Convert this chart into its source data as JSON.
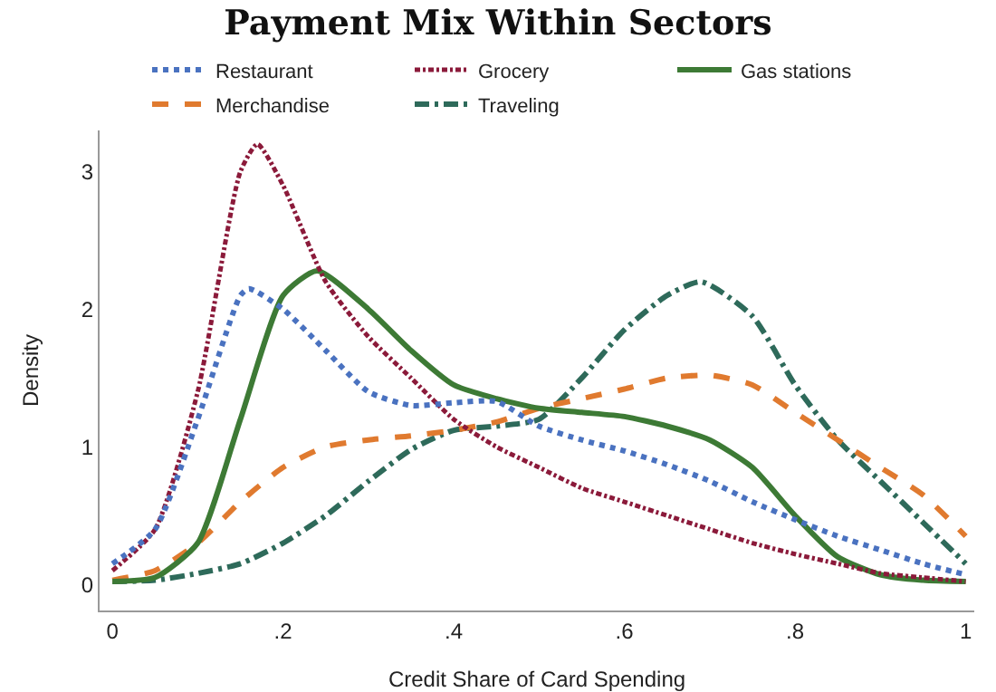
{
  "chart_data": {
    "type": "line",
    "title": "Payment Mix Within Sectors",
    "xlabel": "Credit Share of Card Spending",
    "ylabel": "Density",
    "x": [
      0,
      0.05,
      0.1,
      0.15,
      0.2,
      0.25,
      0.3,
      0.35,
      0.4,
      0.45,
      0.5,
      0.55,
      0.6,
      0.65,
      0.7,
      0.75,
      0.8,
      0.85,
      0.9,
      0.95,
      1
    ],
    "series": [
      {
        "name": "Restaurant",
        "color": "#4a72c0",
        "line_style": "dotted",
        "x": [
          0,
          0.05,
          0.1,
          0.15,
          0.16,
          0.2,
          0.25,
          0.3,
          0.35,
          0.4,
          0.45,
          0.5,
          0.55,
          0.6,
          0.65,
          0.7,
          0.75,
          0.8,
          0.85,
          0.9,
          0.95,
          1
        ],
        "values": [
          0.15,
          0.4,
          1.2,
          2.1,
          2.15,
          2.0,
          1.7,
          1.4,
          1.3,
          1.32,
          1.33,
          1.15,
          1.05,
          0.97,
          0.87,
          0.75,
          0.6,
          0.47,
          0.35,
          0.25,
          0.15,
          0.07
        ]
      },
      {
        "name": "Grocery",
        "color": "#8b1a3a",
        "line_style": "dashdot",
        "x": [
          0,
          0.05,
          0.1,
          0.15,
          0.17,
          0.2,
          0.25,
          0.3,
          0.35,
          0.4,
          0.45,
          0.5,
          0.55,
          0.6,
          0.65,
          0.7,
          0.75,
          0.8,
          0.85,
          0.9,
          0.95,
          1
        ],
        "values": [
          0.1,
          0.4,
          1.4,
          3.0,
          3.2,
          2.9,
          2.2,
          1.8,
          1.5,
          1.2,
          1.0,
          0.85,
          0.7,
          0.6,
          0.5,
          0.4,
          0.3,
          0.22,
          0.15,
          0.08,
          0.05,
          0.02
        ]
      },
      {
        "name": "Gas stations",
        "color": "#3d7a35",
        "line_style": "solid",
        "x": [
          0,
          0.05,
          0.1,
          0.15,
          0.2,
          0.24,
          0.3,
          0.35,
          0.4,
          0.45,
          0.5,
          0.55,
          0.6,
          0.65,
          0.7,
          0.75,
          0.8,
          0.85,
          0.9,
          0.95,
          1
        ],
        "values": [
          0.02,
          0.05,
          0.3,
          1.2,
          2.1,
          2.28,
          2.0,
          1.7,
          1.45,
          1.35,
          1.28,
          1.25,
          1.22,
          1.15,
          1.05,
          0.85,
          0.5,
          0.2,
          0.07,
          0.03,
          0.02
        ]
      },
      {
        "name": "Merchandise",
        "color": "#e07a2f",
        "line_style": "dashed",
        "values": [
          0.03,
          0.1,
          0.3,
          0.6,
          0.85,
          1.0,
          1.05,
          1.08,
          1.12,
          1.18,
          1.28,
          1.35,
          1.42,
          1.5,
          1.52,
          1.45,
          1.25,
          1.05,
          0.85,
          0.65,
          0.35
        ]
      },
      {
        "name": "Traveling",
        "color": "#2e6a5a",
        "line_style": "longdashdot",
        "x": [
          0,
          0.05,
          0.1,
          0.15,
          0.2,
          0.25,
          0.3,
          0.35,
          0.4,
          0.45,
          0.5,
          0.55,
          0.6,
          0.65,
          0.69,
          0.75,
          0.8,
          0.85,
          0.9,
          0.95,
          1
        ],
        "values": [
          0.02,
          0.03,
          0.08,
          0.15,
          0.3,
          0.5,
          0.75,
          0.98,
          1.12,
          1.15,
          1.2,
          1.5,
          1.85,
          2.1,
          2.2,
          1.95,
          1.45,
          1.05,
          0.75,
          0.45,
          0.15
        ]
      }
    ],
    "xlim": [
      -0.015,
      1.01
    ],
    "xticks": [
      0,
      {
        "value": 0.2,
        "label": ".2"
      },
      {
        "value": 0.4,
        "label": ".4"
      },
      {
        "value": 0.6,
        "label": ".6"
      },
      {
        "value": 0.8,
        "label": ".8"
      },
      1
    ],
    "ylim": [
      -0.19,
      3.3
    ],
    "yticks": [
      0,
      1,
      2,
      3
    ],
    "grid": false,
    "legend": "top",
    "marker": "none"
  }
}
